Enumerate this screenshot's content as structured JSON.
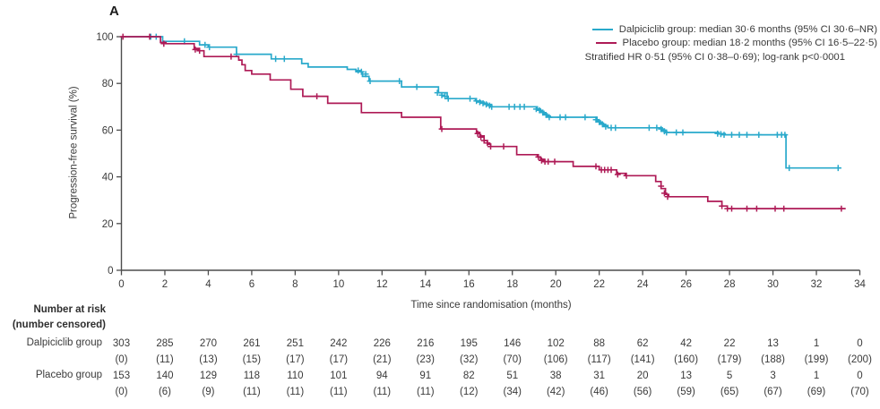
{
  "panel_label": "A",
  "colors": {
    "dalpiciclib": "#29A9CB",
    "placebo": "#AE1A56",
    "axis": "#4d4d4d",
    "text": "#3a3a3a"
  },
  "legend": {
    "entries": [
      {
        "label": "Dalpiciclib group: median 30·6 months (95% CI 30·6–NR)"
      },
      {
        "label": "Placebo group: median 18·2 months (95% CI 16·5–22·5)"
      }
    ],
    "note": "Stratified HR 0·51 (95% CI 0·38–0·69); log-rank p<0·0001"
  },
  "axes": {
    "x": {
      "label": "Time since randomisation (months)",
      "ticks": [
        0,
        2,
        4,
        6,
        8,
        10,
        12,
        14,
        16,
        18,
        20,
        22,
        24,
        26,
        28,
        30,
        32,
        34
      ],
      "range": [
        0,
        34
      ]
    },
    "y": {
      "label": "Progression-free survival (%)",
      "ticks": [
        0,
        20,
        40,
        60,
        80,
        100
      ],
      "range": [
        0,
        100
      ]
    }
  },
  "chart_data": {
    "type": "line",
    "subtype": "kaplan-meier-step",
    "title": "",
    "xlabel": "Time since randomisation (months)",
    "ylabel": "Progression-free survival (%)",
    "xlim": [
      0,
      34
    ],
    "ylim": [
      0,
      100
    ],
    "grid": false,
    "legend_position": "top-right",
    "annotation": "Stratified HR 0·51 (95% CI 0·38–0·69); log-rank p<0·0001",
    "series": [
      {
        "name": "Dalpiciclib group",
        "color": "#29A9CB",
        "median_months": 30.6,
        "ci_95": "30.6–NR",
        "end_month": 33.15,
        "steps": [
          [
            0,
            100
          ],
          [
            1.9,
            98
          ],
          [
            3.6,
            96.5
          ],
          [
            4.0,
            95.5
          ],
          [
            5.3,
            92.5
          ],
          [
            6.9,
            90.5
          ],
          [
            8.3,
            88.5
          ],
          [
            8.6,
            87
          ],
          [
            10.4,
            86
          ],
          [
            10.8,
            85
          ],
          [
            11.1,
            83
          ],
          [
            11.4,
            81
          ],
          [
            12.9,
            78.5
          ],
          [
            14.6,
            76
          ],
          [
            15.0,
            73.5
          ],
          [
            16.3,
            72.5
          ],
          [
            16.55,
            72
          ],
          [
            16.7,
            71.5
          ],
          [
            16.85,
            71
          ],
          [
            17.0,
            70
          ],
          [
            19.15,
            69
          ],
          [
            19.3,
            68
          ],
          [
            19.45,
            67
          ],
          [
            19.6,
            66
          ],
          [
            19.75,
            65.5
          ],
          [
            21.9,
            64
          ],
          [
            22.05,
            63
          ],
          [
            22.2,
            62
          ],
          [
            22.4,
            61
          ],
          [
            24.9,
            60
          ],
          [
            25.05,
            59
          ],
          [
            27.5,
            58.5
          ],
          [
            27.8,
            58
          ],
          [
            30.6,
            43.8
          ]
        ],
        "censors": [
          [
            1.35,
            100
          ],
          [
            1.6,
            100
          ],
          [
            2.9,
            98
          ],
          [
            3.85,
            96.5
          ],
          [
            4.05,
            95.5
          ],
          [
            5.3,
            92.5
          ],
          [
            7.1,
            90.5
          ],
          [
            7.5,
            90.5
          ],
          [
            10.9,
            85.5
          ],
          [
            11.05,
            85
          ],
          [
            11.25,
            84
          ],
          [
            11.45,
            81
          ],
          [
            12.8,
            81
          ],
          [
            13.6,
            78.5
          ],
          [
            14.55,
            76
          ],
          [
            14.75,
            75
          ],
          [
            14.9,
            74.5
          ],
          [
            15.05,
            73.5
          ],
          [
            16.05,
            73.5
          ],
          [
            16.35,
            72.5
          ],
          [
            16.5,
            72
          ],
          [
            16.65,
            71.5
          ],
          [
            16.8,
            71
          ],
          [
            16.95,
            70.5
          ],
          [
            17.05,
            70
          ],
          [
            17.85,
            70
          ],
          [
            18.1,
            70
          ],
          [
            18.35,
            70
          ],
          [
            18.55,
            70
          ],
          [
            19.1,
            69
          ],
          [
            19.25,
            68.5
          ],
          [
            19.4,
            67.5
          ],
          [
            19.55,
            66.5
          ],
          [
            19.7,
            65.5
          ],
          [
            20.2,
            65.5
          ],
          [
            20.45,
            65.5
          ],
          [
            21.35,
            65.5
          ],
          [
            21.85,
            64.5
          ],
          [
            22.0,
            63.5
          ],
          [
            22.15,
            62.5
          ],
          [
            22.3,
            61.5
          ],
          [
            22.55,
            61
          ],
          [
            22.75,
            61
          ],
          [
            24.3,
            61
          ],
          [
            24.65,
            61
          ],
          [
            24.85,
            60.5
          ],
          [
            25.0,
            59.5
          ],
          [
            25.1,
            59
          ],
          [
            25.55,
            59
          ],
          [
            25.85,
            59
          ],
          [
            27.45,
            58.5
          ],
          [
            27.6,
            58.3
          ],
          [
            27.75,
            58
          ],
          [
            28.1,
            58
          ],
          [
            28.45,
            58
          ],
          [
            28.8,
            58
          ],
          [
            29.35,
            58
          ],
          [
            30.2,
            58
          ],
          [
            30.4,
            58
          ],
          [
            30.55,
            58
          ],
          [
            30.75,
            43.8
          ],
          [
            33.0,
            43.8
          ]
        ]
      },
      {
        "name": "Placebo group",
        "color": "#AE1A56",
        "median_months": 18.2,
        "ci_95": "16.5–22.5",
        "end_month": 33.35,
        "steps": [
          [
            0,
            100
          ],
          [
            1.8,
            97.5
          ],
          [
            2.05,
            97
          ],
          [
            3.35,
            95
          ],
          [
            3.55,
            94
          ],
          [
            3.8,
            91.5
          ],
          [
            5.4,
            90
          ],
          [
            5.55,
            88
          ],
          [
            5.7,
            85.5
          ],
          [
            6.0,
            84
          ],
          [
            6.85,
            81.5
          ],
          [
            7.8,
            77.5
          ],
          [
            8.35,
            74.5
          ],
          [
            9.5,
            71.5
          ],
          [
            11.05,
            67.5
          ],
          [
            12.9,
            65.5
          ],
          [
            14.7,
            60.5
          ],
          [
            16.35,
            59
          ],
          [
            16.5,
            57.5
          ],
          [
            16.7,
            55.5
          ],
          [
            16.85,
            54
          ],
          [
            17.0,
            53
          ],
          [
            18.2,
            49.5
          ],
          [
            19.15,
            48.5
          ],
          [
            19.3,
            47.5
          ],
          [
            19.45,
            46.5
          ],
          [
            20.8,
            44.5
          ],
          [
            22.0,
            43
          ],
          [
            22.8,
            41.5
          ],
          [
            23.2,
            40.5
          ],
          [
            24.6,
            38
          ],
          [
            24.85,
            35
          ],
          [
            25.05,
            32.5
          ],
          [
            25.2,
            31.5
          ],
          [
            27.0,
            29.5
          ],
          [
            27.65,
            27.5
          ],
          [
            27.9,
            26.4
          ]
        ],
        "censors": [
          [
            0.07,
            100
          ],
          [
            1.3,
            100
          ],
          [
            1.95,
            97
          ],
          [
            3.4,
            94.5
          ],
          [
            3.6,
            94
          ],
          [
            5.05,
            91.5
          ],
          [
            9.0,
            74.5
          ],
          [
            14.75,
            60.5
          ],
          [
            16.4,
            58.5
          ],
          [
            16.55,
            57
          ],
          [
            16.7,
            55.5
          ],
          [
            16.85,
            54.5
          ],
          [
            17.0,
            53
          ],
          [
            17.6,
            53
          ],
          [
            19.2,
            48.5
          ],
          [
            19.35,
            47
          ],
          [
            19.5,
            46.5
          ],
          [
            19.65,
            46.5
          ],
          [
            19.95,
            46.5
          ],
          [
            21.85,
            44.5
          ],
          [
            22.1,
            43
          ],
          [
            22.25,
            43
          ],
          [
            22.4,
            43
          ],
          [
            22.55,
            43
          ],
          [
            22.85,
            41
          ],
          [
            23.25,
            40.5
          ],
          [
            24.85,
            36
          ],
          [
            25.0,
            33
          ],
          [
            25.15,
            31.5
          ],
          [
            27.65,
            27.5
          ],
          [
            27.9,
            26.4
          ],
          [
            28.1,
            26.4
          ],
          [
            28.8,
            26.4
          ],
          [
            29.25,
            26.4
          ],
          [
            30.1,
            26.4
          ],
          [
            30.5,
            26.4
          ],
          [
            33.15,
            26.4
          ]
        ]
      }
    ]
  },
  "risk_table": {
    "header_line1": "Number at risk",
    "header_line2": "(number censored)",
    "time_points": [
      0,
      2,
      4,
      6,
      8,
      10,
      12,
      14,
      16,
      18,
      20,
      22,
      24,
      26,
      28,
      30,
      32,
      34
    ],
    "rows": [
      {
        "label": "Dalpiciclib group",
        "at_risk": [
          303,
          285,
          270,
          261,
          251,
          242,
          226,
          216,
          195,
          146,
          102,
          88,
          62,
          42,
          22,
          13,
          1,
          0
        ],
        "censored": [
          0,
          11,
          13,
          15,
          17,
          17,
          21,
          23,
          32,
          70,
          106,
          117,
          141,
          160,
          179,
          188,
          199,
          200
        ]
      },
      {
        "label": "Placebo group",
        "at_risk": [
          153,
          140,
          129,
          118,
          110,
          101,
          94,
          91,
          82,
          51,
          38,
          31,
          20,
          13,
          5,
          3,
          1,
          0
        ],
        "censored": [
          0,
          6,
          9,
          11,
          11,
          11,
          11,
          11,
          12,
          34,
          42,
          46,
          56,
          59,
          65,
          67,
          69,
          70
        ]
      }
    ]
  }
}
